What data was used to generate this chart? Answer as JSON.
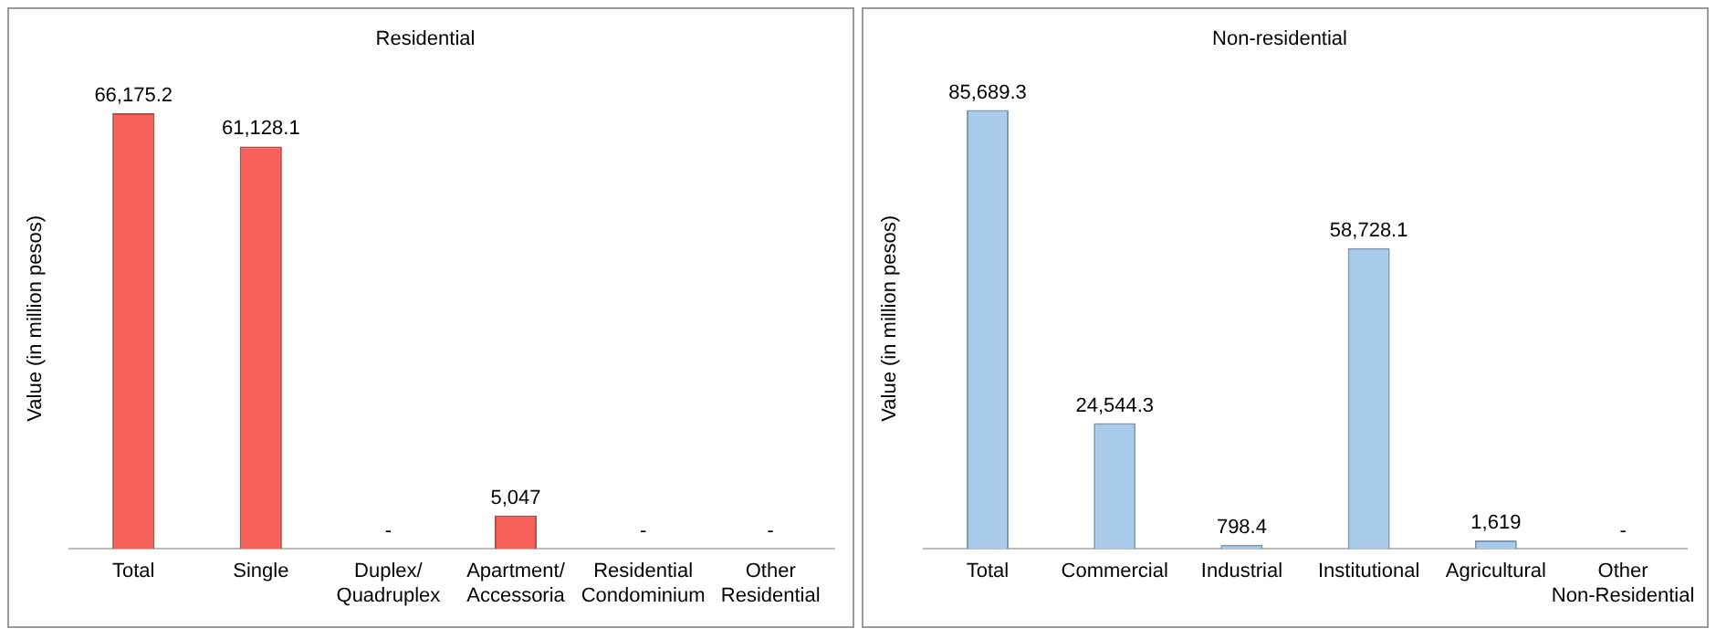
{
  "chart_data": [
    {
      "type": "bar",
      "title": "Residential",
      "ylabel": "Value (in million pesos)",
      "categories": [
        "Total",
        "Single",
        "Duplex/\nQuadruplex",
        "Apartment/\nAccessoria",
        "Residential\nCondominium",
        "Other\nResidential"
      ],
      "values": [
        66175.2,
        61128.1,
        0,
        5047,
        0,
        0
      ],
      "value_labels": [
        "66,175.2",
        "61,128.1",
        "-",
        "5,047",
        "-",
        "-"
      ],
      "color": "#f8605a",
      "tick_labels": "x",
      "grid": false,
      "legend": false
    },
    {
      "type": "bar",
      "title": "Non-residential",
      "ylabel": "Value (in million pesos)",
      "categories": [
        "Total",
        "Commercial",
        "Industrial",
        "Institutional",
        "Agricultural",
        "Other\nNon-Residential"
      ],
      "values": [
        85689.3,
        24544.3,
        798.4,
        58728.1,
        1619,
        0
      ],
      "value_labels": [
        "85,689.3",
        "24,544.3",
        "798.4",
        "58,728.1",
        "1,619",
        "-"
      ],
      "color": "#a8cbec",
      "tick_labels": "x",
      "grid": false,
      "legend": false
    }
  ]
}
